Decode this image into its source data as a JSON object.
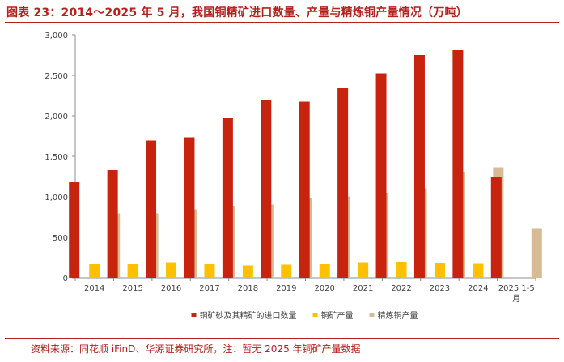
{
  "title": "图表 23：2014～2025 年 5 月，我国铜精矿进口数量、产量与精炼铜产量情况（万吨）",
  "source": "资料来源：同花顺 iFinD、华源证券研究所，注：暂无 2025 年铜矿产量数据",
  "colors": {
    "accent": "#b5211d",
    "import": "#c8230f",
    "mine": "#ffc000",
    "refined": "#d6bb94"
  },
  "chart_data": {
    "type": "bar",
    "title": "图表 23：2014～2025 年 5 月，我国铜精矿进口数量、产量与精炼铜产量情况（万吨）",
    "categories": [
      "2014",
      "2015",
      "2016",
      "2017",
      "2018",
      "2019",
      "2020",
      "2021",
      "2022",
      "2023",
      "2024",
      "2025 1-5月"
    ],
    "category_lines": [
      [
        "2014"
      ],
      [
        "2015"
      ],
      [
        "2016"
      ],
      [
        "2017"
      ],
      [
        "2018"
      ],
      [
        "2019"
      ],
      [
        "2020"
      ],
      [
        "2021"
      ],
      [
        "2022"
      ],
      [
        "2023"
      ],
      [
        "2024"
      ],
      [
        "2025 1-5",
        "月"
      ]
    ],
    "series": [
      {
        "name": "铜矿砂及其精矿的进口数量",
        "color": "#c8230f",
        "values": [
          1180,
          1330,
          1695,
          1735,
          1970,
          2200,
          2175,
          2340,
          2525,
          2750,
          2810,
          1240
        ]
      },
      {
        "name": "铜矿产量",
        "color": "#ffc000",
        "values": [
          170,
          170,
          185,
          170,
          155,
          165,
          170,
          185,
          190,
          180,
          175,
          null
        ]
      },
      {
        "name": "精炼铜产量",
        "color": "#d6bb94",
        "values": [
          795,
          795,
          845,
          890,
          905,
          980,
          1005,
          1050,
          1105,
          1300,
          1365,
          605
        ]
      }
    ],
    "yticks": [
      "0",
      "500",
      "1,000",
      "1,500",
      "2,000",
      "2,500",
      "3,000"
    ],
    "ylim": [
      0,
      3000
    ],
    "xlabel": "",
    "ylabel": "",
    "grid": false,
    "legend_position": "bottom"
  }
}
